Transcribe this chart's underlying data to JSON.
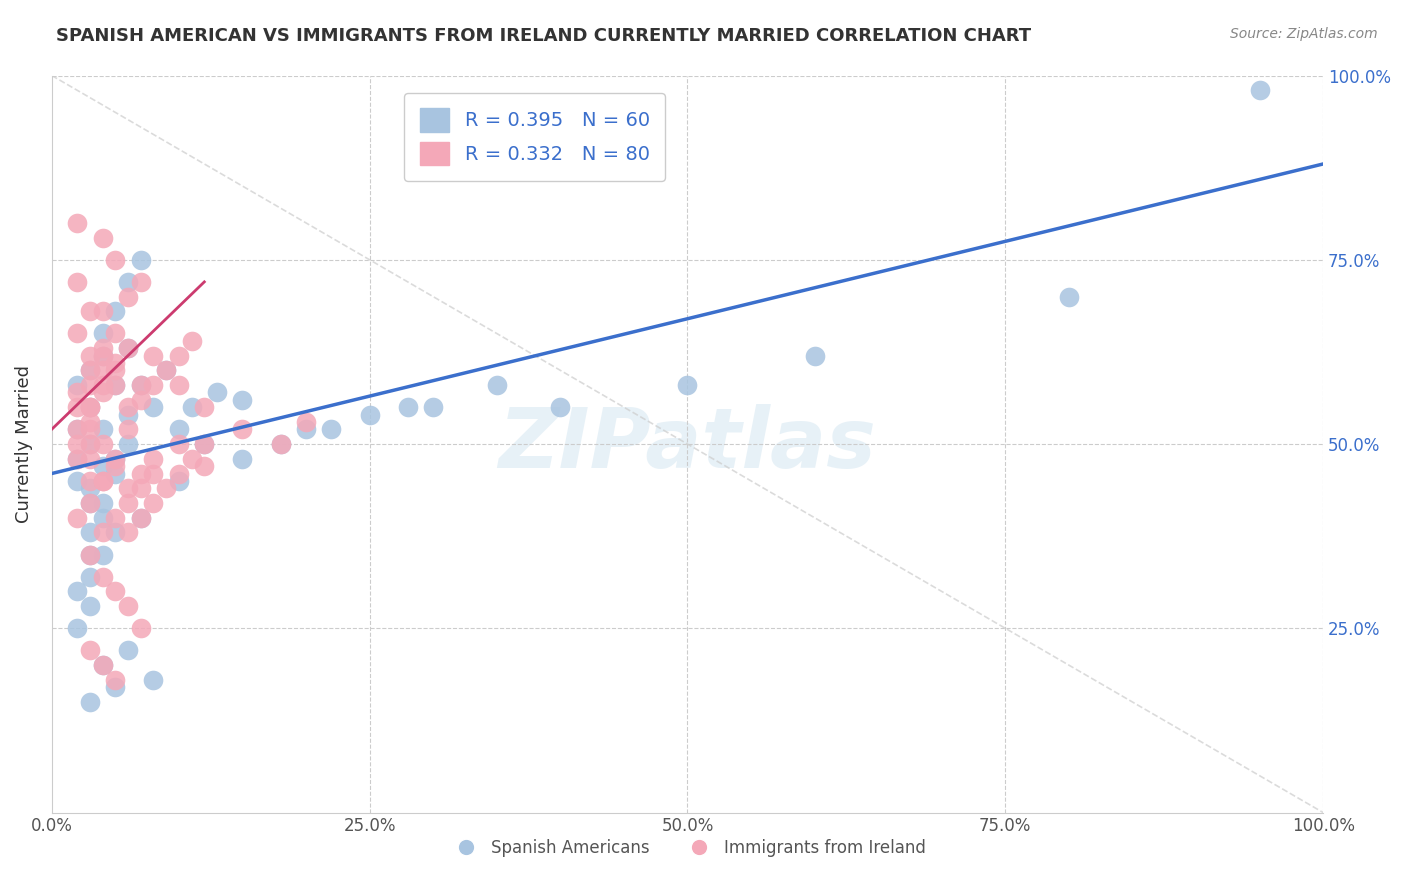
{
  "title": "SPANISH AMERICAN VS IMMIGRANTS FROM IRELAND CURRENTLY MARRIED CORRELATION CHART",
  "source": "Source: ZipAtlas.com",
  "xlabel": "",
  "ylabel": "Currently Married",
  "R_blue": 0.395,
  "N_blue": 60,
  "R_pink": 0.332,
  "N_pink": 80,
  "color_blue": "#a8c4e0",
  "color_pink": "#f4a8b8",
  "line_color_blue": "#3b6fcc",
  "line_color_pink": "#cc3b6f",
  "xlim": [
    0,
    1
  ],
  "ylim": [
    0,
    1
  ],
  "xtick_labels": [
    "0.0%",
    "25.0%",
    "50.0%",
    "75.0%",
    "100.0%"
  ],
  "xtick_vals": [
    0,
    0.25,
    0.5,
    0.75,
    1.0
  ],
  "ytick_labels_left": [
    "",
    "25.0%",
    "50.0%",
    "75.0%",
    ""
  ],
  "ytick_labels_right": [
    "",
    "25.0%",
    "50.0%",
    "75.0%",
    "100.0%"
  ],
  "ytick_vals": [
    0,
    0.25,
    0.5,
    0.75,
    1.0
  ],
  "watermark": "ZIPatlas",
  "legend_label_blue": "Spanish Americans",
  "legend_label_pink": "Immigrants from Ireland",
  "blue_scatter_x": [
    0.02,
    0.03,
    0.02,
    0.03,
    0.04,
    0.02,
    0.03,
    0.02,
    0.04,
    0.05,
    0.03,
    0.04,
    0.06,
    0.05,
    0.07,
    0.06,
    0.08,
    0.1,
    0.12,
    0.15,
    0.03,
    0.04,
    0.03,
    0.05,
    0.04,
    0.06,
    0.07,
    0.09,
    0.11,
    0.13,
    0.02,
    0.03,
    0.04,
    0.03,
    0.05,
    0.06,
    0.2,
    0.25,
    0.3,
    0.35,
    0.02,
    0.03,
    0.04,
    0.05,
    0.07,
    0.1,
    0.15,
    0.18,
    0.22,
    0.28,
    0.04,
    0.06,
    0.08,
    0.4,
    0.5,
    0.6,
    0.8,
    0.95,
    0.03,
    0.05
  ],
  "blue_scatter_y": [
    0.52,
    0.55,
    0.48,
    0.6,
    0.62,
    0.45,
    0.5,
    0.58,
    0.65,
    0.68,
    0.42,
    0.47,
    0.72,
    0.58,
    0.75,
    0.63,
    0.55,
    0.52,
    0.5,
    0.56,
    0.38,
    0.42,
    0.35,
    0.48,
    0.52,
    0.54,
    0.58,
    0.6,
    0.55,
    0.57,
    0.3,
    0.32,
    0.4,
    0.44,
    0.46,
    0.5,
    0.52,
    0.54,
    0.55,
    0.58,
    0.25,
    0.28,
    0.35,
    0.38,
    0.4,
    0.45,
    0.48,
    0.5,
    0.52,
    0.55,
    0.2,
    0.22,
    0.18,
    0.55,
    0.58,
    0.62,
    0.7,
    0.98,
    0.15,
    0.17
  ],
  "pink_scatter_x": [
    0.02,
    0.02,
    0.03,
    0.02,
    0.03,
    0.04,
    0.03,
    0.02,
    0.04,
    0.05,
    0.03,
    0.04,
    0.06,
    0.05,
    0.07,
    0.04,
    0.03,
    0.02,
    0.05,
    0.04,
    0.02,
    0.03,
    0.02,
    0.03,
    0.04,
    0.03,
    0.05,
    0.06,
    0.04,
    0.05,
    0.03,
    0.04,
    0.06,
    0.07,
    0.08,
    0.1,
    0.12,
    0.15,
    0.18,
    0.2,
    0.02,
    0.03,
    0.04,
    0.03,
    0.05,
    0.06,
    0.07,
    0.08,
    0.1,
    0.12,
    0.03,
    0.04,
    0.05,
    0.06,
    0.07,
    0.08,
    0.04,
    0.05,
    0.06,
    0.07,
    0.02,
    0.03,
    0.04,
    0.05,
    0.06,
    0.07,
    0.08,
    0.09,
    0.1,
    0.11,
    0.03,
    0.04,
    0.05,
    0.06,
    0.07,
    0.08,
    0.09,
    0.1,
    0.11,
    0.12
  ],
  "pink_scatter_y": [
    0.8,
    0.72,
    0.68,
    0.65,
    0.6,
    0.78,
    0.55,
    0.52,
    0.62,
    0.65,
    0.58,
    0.63,
    0.7,
    0.58,
    0.72,
    0.68,
    0.62,
    0.57,
    0.75,
    0.6,
    0.5,
    0.55,
    0.48,
    0.52,
    0.57,
    0.53,
    0.6,
    0.63,
    0.58,
    0.61,
    0.45,
    0.5,
    0.55,
    0.58,
    0.62,
    0.58,
    0.55,
    0.52,
    0.5,
    0.53,
    0.4,
    0.42,
    0.45,
    0.48,
    0.47,
    0.44,
    0.46,
    0.48,
    0.5,
    0.47,
    0.35,
    0.38,
    0.4,
    0.42,
    0.44,
    0.46,
    0.32,
    0.3,
    0.28,
    0.25,
    0.55,
    0.5,
    0.45,
    0.48,
    0.52,
    0.56,
    0.58,
    0.6,
    0.62,
    0.64,
    0.22,
    0.2,
    0.18,
    0.38,
    0.4,
    0.42,
    0.44,
    0.46,
    0.48,
    0.5
  ]
}
